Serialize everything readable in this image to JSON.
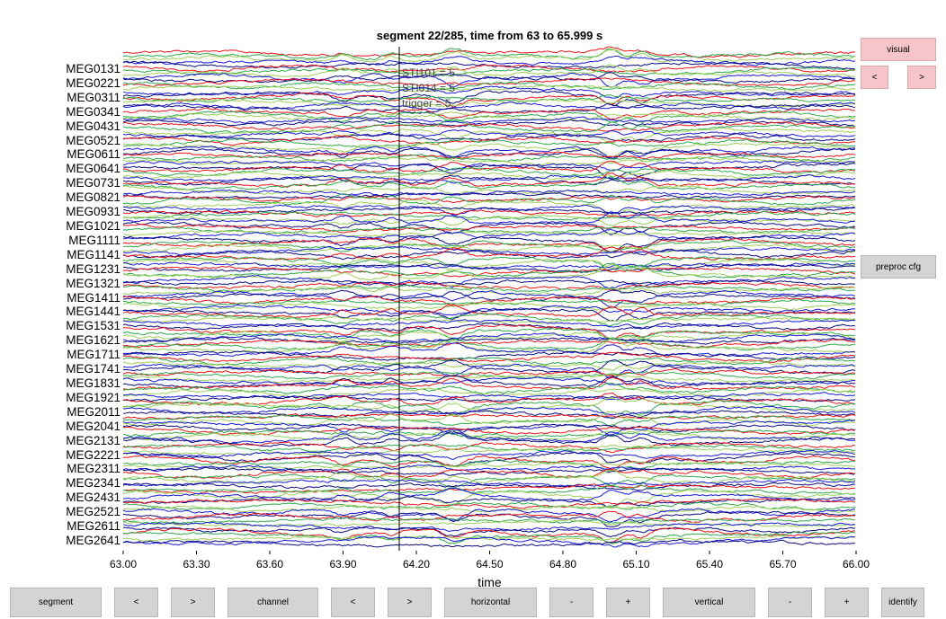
{
  "title": "segment 22/285, time from 63 to 65.999 s",
  "channels": [
    "MEG0131",
    "MEG0221",
    "MEG0311",
    "MEG0341",
    "MEG0431",
    "MEG0521",
    "MEG0611",
    "MEG0641",
    "MEG0731",
    "MEG0821",
    "MEG0931",
    "MEG1021",
    "MEG1111",
    "MEG1141",
    "MEG1231",
    "MEG1321",
    "MEG1411",
    "MEG1441",
    "MEG1531",
    "MEG1621",
    "MEG1711",
    "MEG1741",
    "MEG1831",
    "MEG1921",
    "MEG2011",
    "MEG2041",
    "MEG2131",
    "MEG2221",
    "MEG2311",
    "MEG2341",
    "MEG2431",
    "MEG2521",
    "MEG2611",
    "MEG2641"
  ],
  "x_axis": {
    "label": "time",
    "min": 63.0,
    "max": 66.0,
    "ticks": [
      "63.00",
      "63.30",
      "63.60",
      "63.90",
      "64.20",
      "64.50",
      "64.80",
      "65.10",
      "65.40",
      "65.70",
      "66.00"
    ],
    "tick_values": [
      63.0,
      63.3,
      63.6,
      63.9,
      64.2,
      64.5,
      64.8,
      65.1,
      65.4,
      65.7,
      66.0
    ]
  },
  "event_marker": {
    "time": 64.13,
    "labels": [
      "STI101 = 5",
      "STI014 = 5",
      "trigger = 5"
    ]
  },
  "trace_colors": [
    "#e8141a",
    "#2fa84f",
    "#9dcf5a",
    "#1a1ad6",
    "#0b0b80"
  ],
  "right_panel": {
    "visual_label": "visual",
    "prev_label": "<",
    "next_label": ">",
    "preproc_label": "preproc cfg"
  },
  "bottom_bar": {
    "segment_label": "segment",
    "segment_prev": "<",
    "segment_next": ">",
    "channel_label": "channel",
    "channel_prev": "<",
    "channel_next": ">",
    "horizontal_label": "horizontal",
    "horizontal_minus": "-",
    "horizontal_plus": "+",
    "vertical_label": "vertical",
    "vertical_minus": "-",
    "vertical_plus": "+",
    "identify_label": "identify"
  }
}
